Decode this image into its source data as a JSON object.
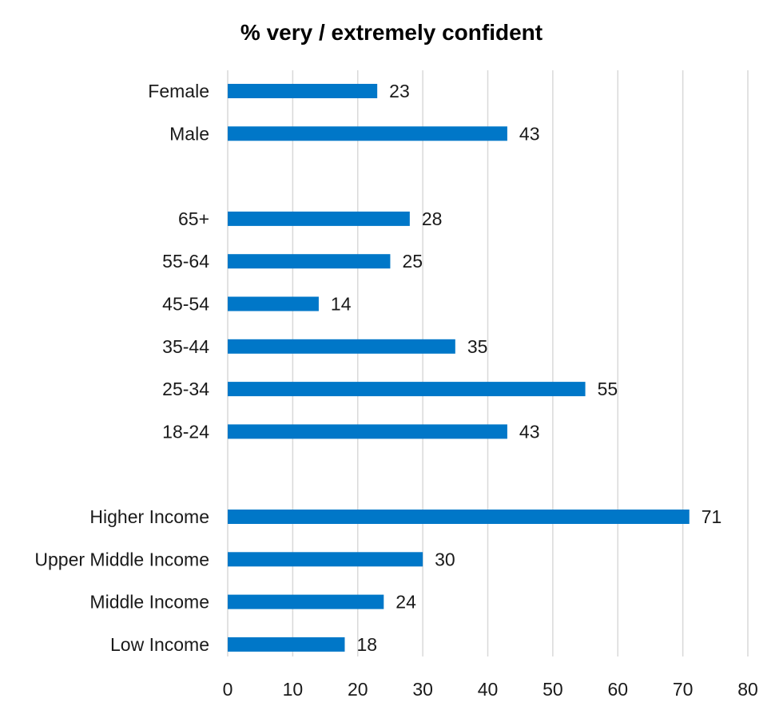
{
  "chart_data": {
    "type": "bar",
    "orientation": "horizontal",
    "title": "% very / extremely confident",
    "xlabel": "",
    "ylabel": "",
    "xlim": [
      0,
      80
    ],
    "ticks": [
      0,
      10,
      20,
      30,
      40,
      50,
      60,
      70,
      80
    ],
    "grid": true,
    "bar_color": "#0077c8",
    "groups": [
      {
        "name": "gender",
        "categories": [
          "Female",
          "Male"
        ],
        "values": [
          23,
          43
        ]
      },
      {
        "name": "age",
        "categories": [
          "65+",
          "55-64",
          "45-54",
          "35-44",
          "25-34",
          "18-24"
        ],
        "values": [
          28,
          25,
          14,
          35,
          55,
          43
        ]
      },
      {
        "name": "income",
        "categories": [
          "Higher Income",
          "Upper Middle Income",
          "Middle Income",
          "Low Income"
        ],
        "values": [
          71,
          30,
          24,
          18
        ]
      }
    ]
  }
}
